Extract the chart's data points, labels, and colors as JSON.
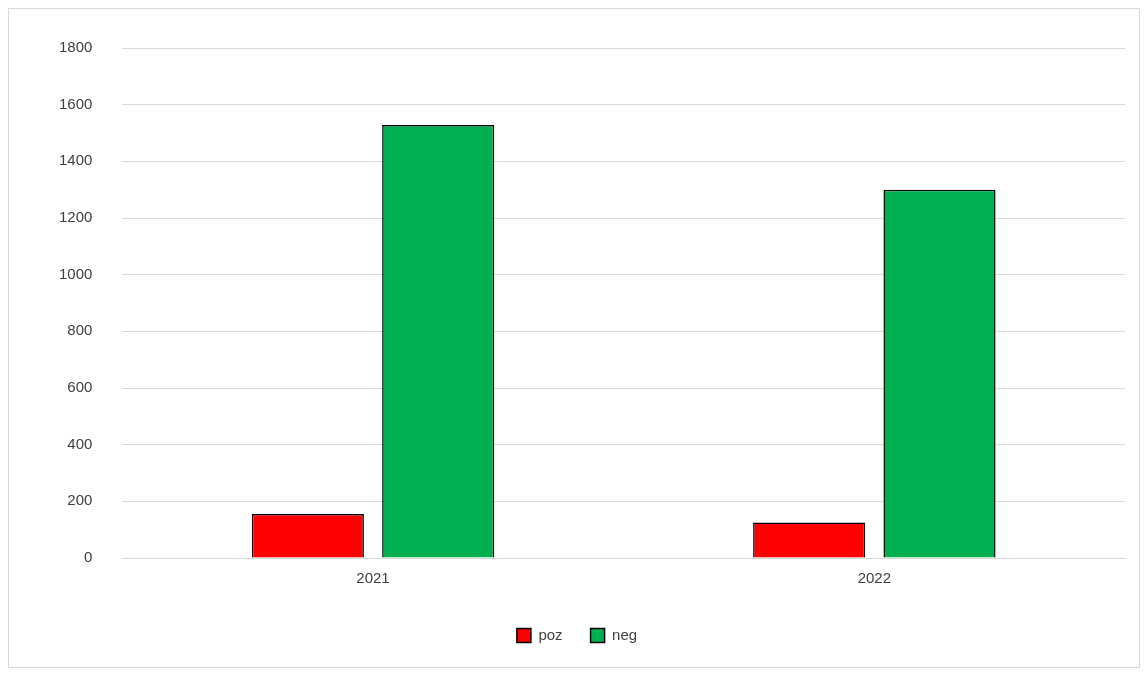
{
  "chart_data": {
    "type": "bar",
    "categories": [
      "2021",
      "2022"
    ],
    "series": [
      {
        "name": "poz",
        "color": "#ff0000",
        "values": [
          155,
          125
        ]
      },
      {
        "name": "neg",
        "color": "#00b050",
        "values": [
          1528,
          1300
        ]
      }
    ],
    "ylim": [
      0,
      1800
    ],
    "yticks": [
      0,
      200,
      400,
      600,
      800,
      1000,
      1200,
      1400,
      1600,
      1800
    ],
    "grid": "y",
    "legend": "bottom"
  }
}
